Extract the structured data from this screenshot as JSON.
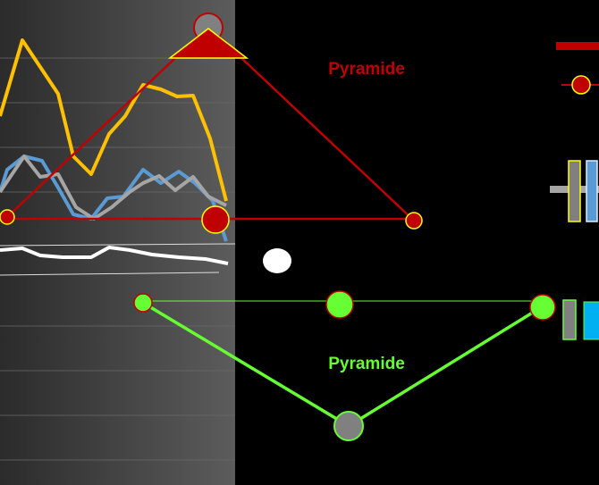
{
  "labels": {
    "top": "Pyramide",
    "bottom": "Pyramide"
  }
}
